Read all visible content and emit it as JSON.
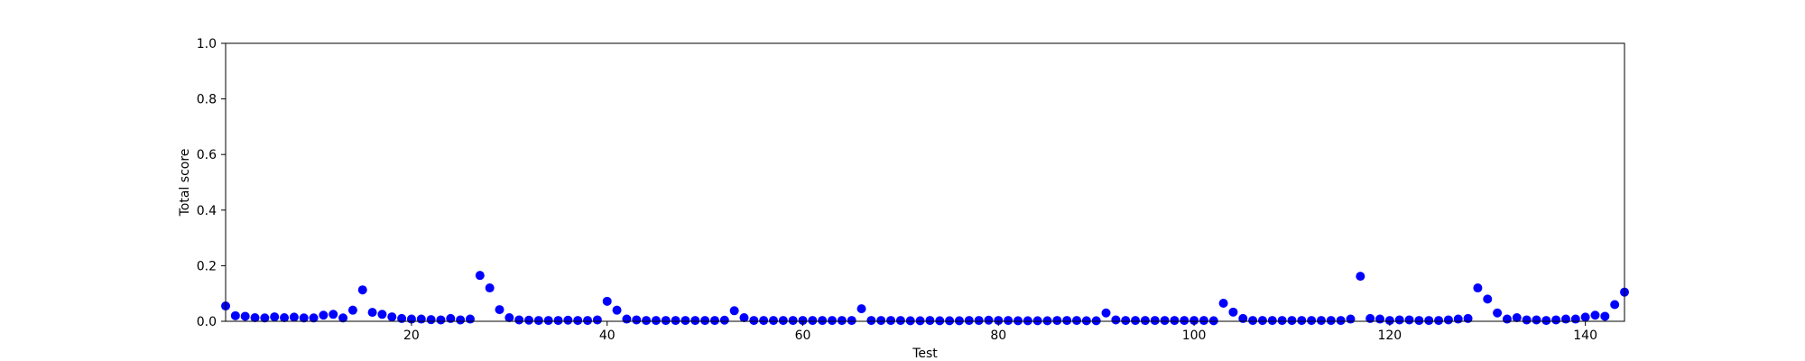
{
  "chart_data": {
    "type": "scatter",
    "title": "",
    "xlabel": "Test",
    "ylabel": "Total score",
    "xlim": [
      1,
      144
    ],
    "ylim": [
      0.0,
      1.0
    ],
    "grid": false,
    "legend": "none",
    "marker_color": "#0000ff",
    "x_ticks": [
      20,
      40,
      60,
      80,
      100,
      120,
      140
    ],
    "x_tick_labels": [
      "20",
      "40",
      "60",
      "80",
      "100",
      "120",
      "140"
    ],
    "y_ticks": [
      0.0,
      0.2,
      0.4,
      0.6,
      0.8,
      1.0
    ],
    "y_tick_labels": [
      "0.0",
      "0.2",
      "0.4",
      "0.6",
      "0.8",
      "1.0"
    ],
    "series": [
      {
        "x": [
          1,
          2,
          3,
          4,
          5,
          6,
          7,
          8,
          9,
          10,
          11,
          12,
          13,
          14,
          15,
          16,
          17,
          18,
          19,
          20,
          21,
          22,
          23,
          24,
          25,
          26,
          27,
          28,
          29,
          30,
          31,
          32,
          33,
          34,
          35,
          36,
          37,
          38,
          39,
          40,
          41,
          42,
          43,
          44,
          45,
          46,
          47,
          48,
          49,
          50,
          51,
          52,
          53,
          54,
          55,
          56,
          57,
          58,
          59,
          60,
          61,
          62,
          63,
          64,
          65,
          66,
          67,
          68,
          69,
          70,
          71,
          72,
          73,
          74,
          75,
          76,
          77,
          78,
          79,
          80,
          81,
          82,
          83,
          84,
          85,
          86,
          87,
          88,
          89,
          90,
          91,
          92,
          93,
          94,
          95,
          96,
          97,
          98,
          99,
          100,
          101,
          102,
          103,
          104,
          105,
          106,
          107,
          108,
          109,
          110,
          111,
          112,
          113,
          114,
          115,
          116,
          117,
          118,
          119,
          120,
          121,
          122,
          123,
          124,
          125,
          126,
          127,
          128,
          129,
          130,
          131,
          132,
          133,
          134,
          135,
          136,
          137,
          138,
          139,
          140,
          141,
          142,
          143,
          144
        ],
        "y": [
          0.055,
          0.02,
          0.018,
          0.013,
          0.012,
          0.016,
          0.013,
          0.015,
          0.012,
          0.012,
          0.022,
          0.025,
          0.012,
          0.04,
          0.113,
          0.032,
          0.025,
          0.016,
          0.01,
          0.008,
          0.008,
          0.006,
          0.005,
          0.01,
          0.005,
          0.008,
          0.165,
          0.12,
          0.042,
          0.013,
          0.005,
          0.004,
          0.003,
          0.003,
          0.003,
          0.004,
          0.003,
          0.003,
          0.005,
          0.072,
          0.04,
          0.008,
          0.005,
          0.003,
          0.003,
          0.003,
          0.003,
          0.003,
          0.003,
          0.003,
          0.003,
          0.004,
          0.038,
          0.013,
          0.003,
          0.003,
          0.003,
          0.003,
          0.003,
          0.003,
          0.003,
          0.003,
          0.003,
          0.003,
          0.003,
          0.045,
          0.003,
          0.003,
          0.003,
          0.003,
          0.002,
          0.002,
          0.003,
          0.002,
          0.002,
          0.002,
          0.003,
          0.003,
          0.004,
          0.003,
          0.003,
          0.002,
          0.002,
          0.002,
          0.002,
          0.003,
          0.003,
          0.003,
          0.002,
          0.002,
          0.03,
          0.005,
          0.003,
          0.003,
          0.003,
          0.003,
          0.003,
          0.003,
          0.003,
          0.003,
          0.003,
          0.002,
          0.065,
          0.033,
          0.01,
          0.003,
          0.003,
          0.003,
          0.003,
          0.003,
          0.003,
          0.003,
          0.003,
          0.003,
          0.003,
          0.008,
          0.162,
          0.01,
          0.008,
          0.003,
          0.005,
          0.005,
          0.003,
          0.003,
          0.003,
          0.005,
          0.008,
          0.01,
          0.12,
          0.08,
          0.03,
          0.008,
          0.013,
          0.005,
          0.005,
          0.003,
          0.005,
          0.008,
          0.008,
          0.015,
          0.022,
          0.018,
          0.06,
          0.105
        ]
      }
    ]
  }
}
